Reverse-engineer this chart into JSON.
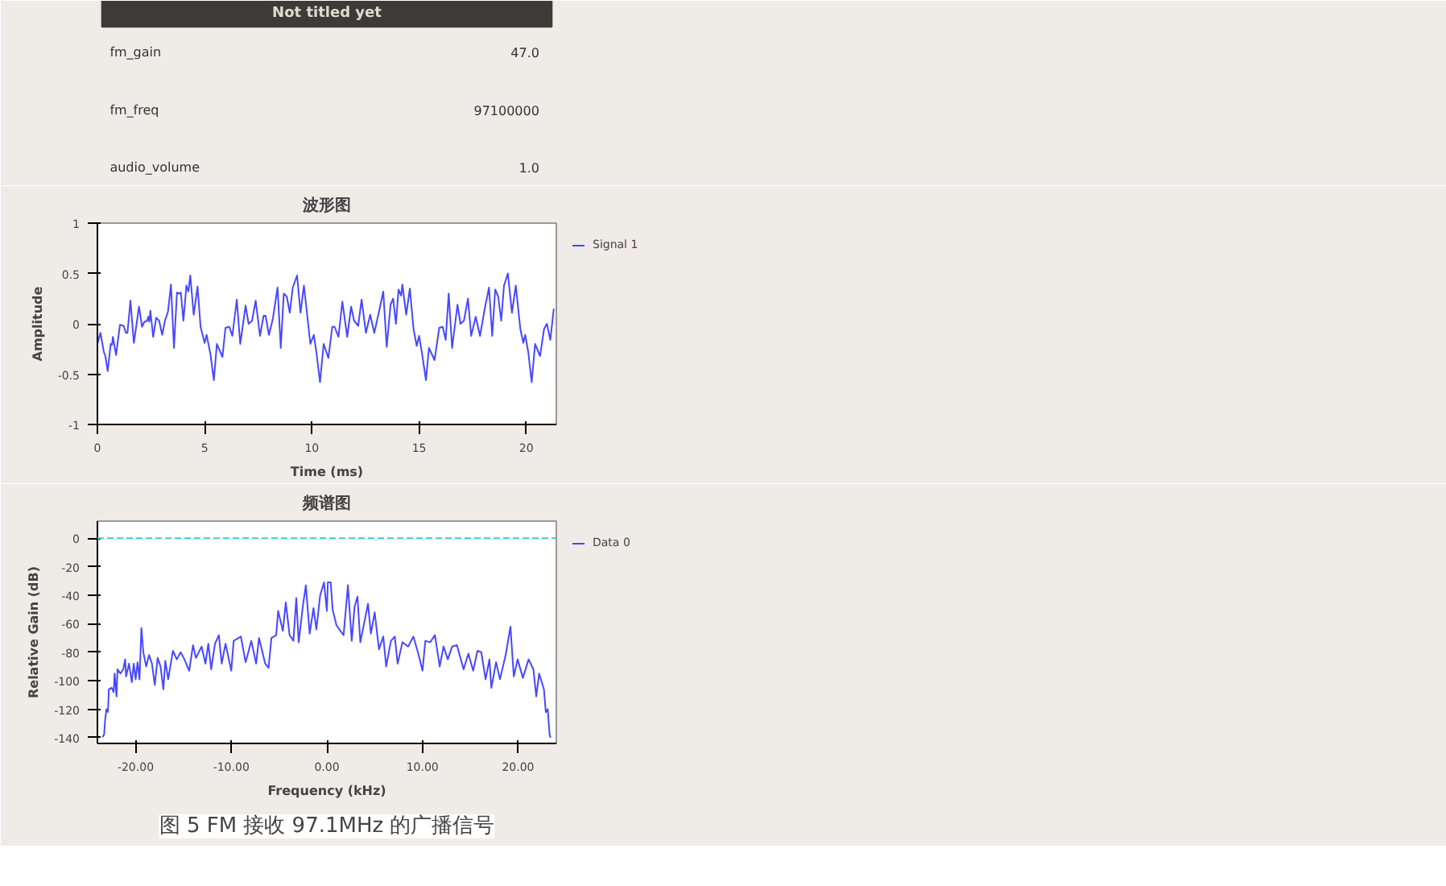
{
  "chart_data": [
    {
      "type": "other",
      "title": "Not titled yet",
      "annotations": [
        "fm_gain",
        "47.0",
        "fm_freq",
        "97100000",
        "audio_volume",
        "1.0"
      ]
    },
    {
      "type": "line",
      "title": "波形图",
      "xlabel": "Time (ms)",
      "ylabel": "Amplitude",
      "xlim": [
        0,
        21.4
      ],
      "ylim": [
        -1,
        1
      ],
      "xticks": [
        0,
        5,
        10,
        15,
        20
      ],
      "yticks": [
        -1,
        -0.5,
        0,
        0.5,
        1
      ],
      "legend": "top right",
      "series": [
        {
          "name": "Signal 1",
          "color": "#4848ff",
          "x": [
            0,
            0.14,
            0.3,
            0.37,
            0.48,
            0.62,
            0.68,
            0.72,
            0.87,
            1.05,
            1.22,
            1.33,
            1.4,
            1.54,
            1.7,
            1.94,
            2.08,
            2.19,
            2.32,
            2.37,
            2.42,
            2.47,
            2.6,
            2.74,
            2.88,
            3.02,
            3.15,
            3.29,
            3.43,
            3.57,
            3.71,
            3.8,
            3.89,
            4.01,
            4.15,
            4.24,
            4.33,
            4.49,
            4.67,
            4.81,
            5.0,
            5.09,
            5.27,
            5.43,
            5.57,
            5.83,
            5.97,
            6.15,
            6.29,
            6.5,
            6.66,
            6.91,
            7.05,
            7.21,
            7.38,
            7.58,
            7.75,
            7.84,
            8.0,
            8.18,
            8.4,
            8.55,
            8.69,
            8.83,
            8.97,
            9.11,
            9.31,
            9.47,
            9.63,
            9.93,
            10.09,
            10.21,
            10.38,
            10.55,
            10.77,
            10.95,
            11.06,
            11.24,
            11.42,
            11.65,
            11.83,
            11.97,
            12.16,
            12.32,
            12.52,
            12.72,
            12.91,
            13.12,
            13.33,
            13.49,
            13.67,
            13.79,
            13.92,
            14.04,
            14.16,
            14.22,
            14.4,
            14.57,
            14.74,
            14.89,
            15.0,
            15.14,
            15.32,
            15.46,
            15.72,
            15.94,
            16.1,
            16.24,
            16.38,
            16.54,
            16.79,
            16.93,
            17.09,
            17.28,
            17.43,
            17.64,
            17.84,
            18.07,
            18.26,
            18.41,
            18.55,
            18.69,
            18.83,
            18.96,
            19.14,
            19.33,
            19.51,
            19.72,
            19.86,
            19.95,
            20.09,
            20.25,
            20.41,
            20.64,
            20.83,
            20.96,
            21.12,
            21.28
          ],
          "values": [
            -0.2,
            -0.09,
            -0.28,
            -0.32,
            -0.47,
            -0.2,
            -0.21,
            -0.13,
            -0.31,
            -0.01,
            -0.02,
            -0.09,
            -0.09,
            0.23,
            -0.19,
            0.17,
            -0.03,
            0.02,
            0.03,
            0.07,
            0.02,
            0.13,
            -0.13,
            0.06,
            0.03,
            -0.11,
            0.03,
            0.12,
            0.39,
            -0.24,
            0.31,
            0.3,
            0.31,
            0.03,
            0.38,
            0.32,
            0.48,
            0.09,
            0.37,
            -0.03,
            -0.19,
            -0.11,
            -0.3,
            -0.56,
            -0.2,
            -0.33,
            -0.04,
            -0.03,
            -0.12,
            0.24,
            -0.2,
            0.18,
            0,
            0.03,
            0.23,
            -0.12,
            0.08,
            0.08,
            -0.11,
            0.05,
            0.36,
            -0.24,
            0.3,
            0.27,
            0.11,
            0.36,
            0.48,
            0.11,
            0.38,
            -0.2,
            -0.11,
            -0.28,
            -0.58,
            -0.2,
            -0.34,
            -0.03,
            -0.03,
            -0.13,
            0.22,
            -0.13,
            0.17,
            0.03,
            -0.02,
            0.24,
            -0.09,
            0.09,
            -0.09,
            0.11,
            0.32,
            -0.23,
            0.19,
            0.25,
            0,
            0.34,
            0.28,
            0.39,
            0.09,
            0.35,
            -0.05,
            -0.22,
            -0.12,
            -0.3,
            -0.56,
            -0.24,
            -0.36,
            -0.04,
            -0.03,
            -0.16,
            0.3,
            -0.24,
            0.19,
            0,
            0.03,
            0.25,
            -0.12,
            0.07,
            -0.12,
            0.16,
            0.36,
            -0.12,
            0.34,
            0.27,
            0.03,
            0.38,
            0.5,
            0.11,
            0.38,
            -0.05,
            -0.19,
            -0.11,
            -0.28,
            -0.58,
            -0.2,
            -0.32,
            -0.05,
            0,
            -0.16,
            0.15
          ]
        }
      ]
    },
    {
      "type": "line",
      "title": "频谱图",
      "xlabel": "Frequency (kHz)",
      "ylabel": "Relative Gain (dB)",
      "xlim": [
        -24,
        24
      ],
      "ylim": [
        -144,
        12
      ],
      "xticks": [
        {
          "value": -20,
          "label": "-20.00"
        },
        {
          "value": -10,
          "label": "-10.00"
        },
        {
          "value": 0,
          "label": "0.00"
        },
        {
          "value": 10,
          "label": "10.00"
        },
        {
          "value": 20,
          "label": "20.00"
        }
      ],
      "yticks": [
        -140,
        -120,
        -100,
        -80,
        -60,
        -40,
        -20,
        0
      ],
      "legend": "top right",
      "ref_lines": [
        {
          "axis": "y",
          "value": 0,
          "color": "#40c8d0",
          "line_style": "dashed"
        }
      ],
      "annotations": [
        "图 5 FM 接收 97.1MHz 的广播信号"
      ],
      "series": [
        {
          "name": "Data 0",
          "color": "#4848ff",
          "x": [
            -23.46,
            -23.3,
            -23.2,
            -23.06,
            -22.9,
            -22.8,
            -22.5,
            -22.3,
            -22.2,
            -22.0,
            -21.9,
            -21.6,
            -21.3,
            -21.1,
            -21.0,
            -20.7,
            -20.4,
            -20.2,
            -20.0,
            -19.8,
            -19.6,
            -19.4,
            -19.2,
            -18.9,
            -18.6,
            -18.3,
            -18.0,
            -17.7,
            -17.4,
            -17.1,
            -16.9,
            -16.6,
            -16.1,
            -15.7,
            -15.3,
            -14.9,
            -14.4,
            -14.0,
            -13.7,
            -13.1,
            -12.7,
            -12.4,
            -12.1,
            -11.7,
            -11.3,
            -11.0,
            -10.6,
            -10.0,
            -9.75,
            -9.0,
            -8.5,
            -7.9,
            -7.4,
            -7.1,
            -6.45,
            -6.1,
            -5.8,
            -5.3,
            -5.1,
            -4.6,
            -4.3,
            -3.9,
            -3.5,
            -3.2,
            -2.95,
            -2.5,
            -2.2,
            -1.8,
            -1.4,
            -1.1,
            -0.7,
            -0.3,
            0,
            0.1,
            0.4,
            0.6,
            1.0,
            1.4,
            1.75,
            2.2,
            2.6,
            2.9,
            3.2,
            3.5,
            4.3,
            4.6,
            5.0,
            5.45,
            5.9,
            6.2,
            6.7,
            7.1,
            7.4,
            7.9,
            8.5,
            9.05,
            9.6,
            10.0,
            10.3,
            10.8,
            11.3,
            11.8,
            12.2,
            12.65,
            13.1,
            13.6,
            14.3,
            14.8,
            15.3,
            15.75,
            16.15,
            16.6,
            17.0,
            17.2,
            17.7,
            18.1,
            18.7,
            19.2,
            19.55,
            19.95,
            20.5,
            21.1,
            21.6,
            21.9,
            22.2,
            22.7,
            22.9,
            23.1,
            23.3,
            23.4
          ],
          "values": [
            -139.6,
            -137.7,
            -128,
            -120,
            -122,
            -106,
            -105,
            -108,
            -95,
            -111,
            -92,
            -95,
            -92,
            -85,
            -97,
            -88,
            -101,
            -88,
            -99,
            -87,
            -99,
            -63,
            -80,
            -90,
            -82,
            -88,
            -103,
            -84,
            -90,
            -106,
            -86,
            -99,
            -79,
            -85,
            -80,
            -85,
            -93,
            -75,
            -84,
            -76,
            -88,
            -74,
            -92,
            -74,
            -68,
            -88,
            -74,
            -93,
            -72,
            -69,
            -87,
            -72,
            -88,
            -70,
            -88,
            -91,
            -70,
            -68,
            -51,
            -65,
            -45,
            -68,
            -72,
            -42,
            -73,
            -47,
            -33,
            -67,
            -49,
            -64,
            -40,
            -31,
            -51,
            -31,
            -31,
            -50,
            -61,
            -65,
            -68,
            -33,
            -72,
            -48,
            -41,
            -73,
            -46,
            -67,
            -52,
            -78,
            -69,
            -90,
            -72,
            -69,
            -88,
            -73,
            -76,
            -69,
            -82,
            -93,
            -72,
            -73,
            -68,
            -90,
            -76,
            -85,
            -76,
            -75,
            -92,
            -81,
            -93,
            -79,
            -80,
            -99,
            -85,
            -105,
            -87,
            -99,
            -82,
            -62,
            -97,
            -85,
            -98,
            -85,
            -92,
            -111,
            -95,
            -106,
            -122,
            -120,
            -138,
            -140
          ]
        }
      ]
    }
  ]
}
